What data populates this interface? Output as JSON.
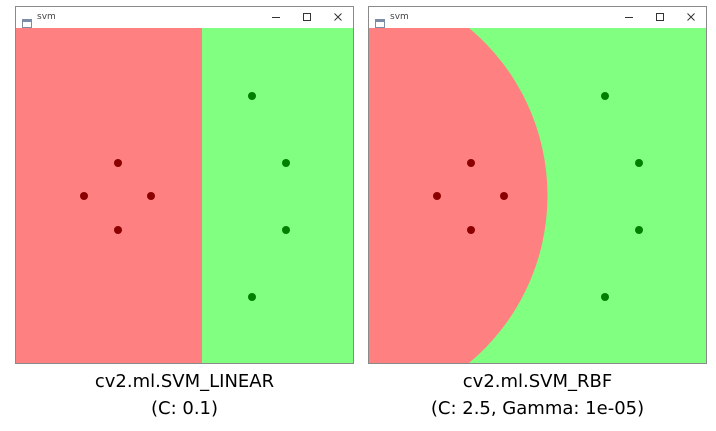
{
  "windows": [
    {
      "title": "svm",
      "kernel_caption": "cv2.ml.SVM_LINEAR",
      "params_caption": "(C: 0.1)"
    },
    {
      "title": "svm",
      "kernel_caption": "cv2.ml.SVM_RBF",
      "params_caption": "(C: 2.5, Gamma: 1e-05)"
    }
  ],
  "colors": {
    "class_red_region": "#ff8080",
    "class_green_region": "#80ff80",
    "class_red_point": "#8b0000",
    "class_green_point": "#008000",
    "window_border": "#8a8a8a"
  },
  "icons": {
    "app": "app-window-icon",
    "minimize": "minimize-icon",
    "maximize": "maximize-icon",
    "close": "close-icon"
  }
}
